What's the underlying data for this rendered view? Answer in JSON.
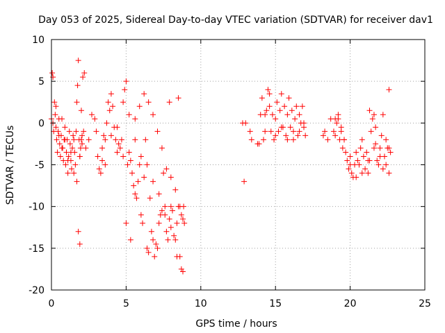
{
  "chart_data": {
    "type": "scatter",
    "title": "Day 053 of 2025, Sidereal Day-to-day VTEC variation (SDTVAR) for receiver dav1",
    "xlabel": "GPS time / hours",
    "ylabel": "SDTVAR / TECUs",
    "xlim": [
      0,
      25
    ],
    "ylim": [
      -20,
      10
    ],
    "xticks": [
      0,
      5,
      10,
      15,
      20,
      25
    ],
    "yticks": [
      10,
      5,
      0,
      -5,
      -10,
      -15,
      -20
    ],
    "xtick_labels": [
      "0",
      "5",
      "10",
      "15",
      "20",
      "25"
    ],
    "ytick_labels": [
      "10",
      "5",
      "0",
      "-5",
      "-10",
      "-15",
      "-20"
    ],
    "grid": true,
    "marker": "+",
    "marker_color": "#ff0000",
    "series": [
      {
        "name": "dav1",
        "x": [
          0.0,
          0.05,
          0.1,
          0.15,
          0.2,
          0.25,
          0.3,
          0.35,
          0.4,
          0.45,
          0.5,
          0.55,
          0.6,
          0.65,
          0.7,
          0.75,
          0.8,
          0.85,
          0.9,
          0.95,
          1.0,
          1.05,
          1.1,
          1.15,
          1.2,
          1.25,
          1.3,
          1.35,
          1.4,
          1.45,
          1.5,
          1.55,
          1.6,
          1.65,
          1.7,
          1.75,
          1.8,
          1.85,
          1.9,
          1.95,
          2.0,
          2.05,
          2.1,
          2.2,
          2.3,
          2.5,
          2.7,
          2.9,
          3.0,
          3.1,
          3.2,
          3.3,
          3.4,
          3.5,
          3.6,
          3.7,
          3.8,
          3.9,
          4.0,
          4.1,
          4.2,
          4.3,
          4.4,
          4.5,
          4.6,
          4.7,
          4.8,
          4.9,
          5.0,
          5.1,
          5.2,
          5.3,
          5.4,
          5.5,
          5.6,
          5.7,
          5.8,
          5.9,
          6.0,
          6.1,
          6.2,
          6.3,
          6.4,
          6.5,
          6.6,
          6.7,
          6.8,
          6.9,
          7.0,
          7.1,
          7.2,
          7.3,
          7.4,
          7.5,
          7.6,
          7.7,
          7.8,
          7.9,
          8.0,
          8.1,
          8.2,
          8.3,
          8.4,
          8.5,
          8.6,
          8.7,
          8.8,
          8.9,
          0.1,
          0.3,
          0.5,
          0.7,
          0.9,
          1.1,
          1.3,
          1.5,
          1.7,
          1.9,
          2.05,
          2.15,
          3.4,
          3.6,
          4.0,
          4.4,
          4.8,
          5.2,
          5.6,
          6.0,
          6.4,
          6.8,
          7.2,
          7.6,
          8.0,
          8.4,
          8.7,
          8.85,
          5.0,
          5.3,
          5.6,
          5.9,
          6.2,
          6.5,
          6.8,
          7.1,
          7.4,
          7.7,
          8.0,
          8.3,
          8.6,
          8.8,
          1.8,
          1.9,
          2.0,
          7.9,
          8.5,
          12.8,
          12.9,
          13.0,
          13.3,
          13.4,
          13.8,
          13.9,
          14.0,
          14.1,
          14.2,
          14.3,
          14.4,
          14.5,
          14.6,
          14.7,
          14.8,
          14.9,
          15.0,
          15.1,
          15.2,
          15.3,
          15.4,
          15.5,
          15.6,
          15.7,
          15.8,
          15.9,
          16.0,
          16.1,
          16.2,
          16.3,
          16.4,
          16.5,
          16.6,
          16.7,
          16.8,
          16.9,
          17.0,
          14.3,
          14.6,
          15.0,
          15.4,
          15.8,
          16.2,
          16.6,
          16.9,
          18.2,
          18.3,
          18.5,
          18.7,
          18.9,
          19.0,
          19.1,
          19.2,
          19.3,
          19.4,
          19.5,
          19.6,
          19.7,
          19.8,
          19.9,
          20.0,
          20.1,
          20.2,
          20.3,
          20.4,
          20.5,
          20.6,
          20.7,
          20.8,
          20.9,
          21.0,
          21.1,
          21.2,
          21.3,
          21.4,
          21.5,
          21.6,
          21.7,
          21.8,
          21.9,
          22.0,
          22.1,
          22.2,
          22.3,
          22.4,
          22.5,
          22.6,
          22.7,
          19.2,
          19.6,
          20.0,
          20.4,
          20.8,
          21.2,
          21.6,
          22.0,
          22.4,
          22.6,
          21.3,
          21.7,
          22.2,
          22.6,
          19.0,
          19.4
        ],
        "y": [
          0.5,
          6.0,
          5.5,
          -1.0,
          2.5,
          1.0,
          -0.5,
          -2.0,
          -3.5,
          -1.0,
          0.5,
          -2.5,
          -4.0,
          -1.5,
          0.5,
          -3.0,
          -4.5,
          -2.0,
          -0.5,
          -5.0,
          -3.5,
          -2.0,
          -6.0,
          -4.0,
          -1.0,
          -2.5,
          -4.5,
          -5.5,
          -3.0,
          -1.5,
          -2.0,
          -3.5,
          -5.0,
          -1.0,
          2.5,
          4.5,
          7.5,
          -2.0,
          -4.0,
          -3.0,
          -2.0,
          -1.5,
          5.5,
          6.0,
          -3.0,
          -2.0,
          1.0,
          0.5,
          -1.0,
          -4.0,
          -5.5,
          -6.0,
          -3.0,
          -1.5,
          -2.0,
          0.0,
          2.5,
          1.5,
          3.5,
          2.0,
          -0.5,
          -2.0,
          -3.5,
          -2.5,
          -3.0,
          -2.0,
          -4.0,
          4.0,
          5.0,
          -5.0,
          -3.5,
          -4.5,
          -6.0,
          -7.5,
          -8.5,
          -9.0,
          -7.0,
          -5.0,
          -11.0,
          -12.0,
          -6.5,
          -2.0,
          -15.0,
          -15.5,
          -9.0,
          -13.0,
          -14.0,
          -16.0,
          -14.5,
          -15.0,
          -12.0,
          -11.0,
          -10.5,
          -6.0,
          -11.0,
          -13.0,
          -14.0,
          -11.5,
          -10.0,
          -10.5,
          -13.5,
          -14.0,
          -12.0,
          -10.0,
          -16.0,
          -17.5,
          -17.8,
          -12.0,
          0.0,
          2.0,
          -1.5,
          -3.0,
          -2.0,
          -4.5,
          -3.5,
          -6.0,
          -7.0,
          -4.0,
          -2.5,
          -1.0,
          -4.5,
          -5.0,
          -1.5,
          -0.5,
          2.5,
          1.0,
          -2.0,
          -4.0,
          -5.0,
          -7.0,
          -8.5,
          -10.0,
          -12.5,
          -16.0,
          -11.0,
          -10.0,
          -12.0,
          -14.0,
          0.5,
          2.0,
          3.5,
          2.5,
          1.0,
          -1.0,
          -3.0,
          -5.5,
          -6.5,
          -8.0,
          -10.0,
          -11.5,
          -13.0,
          -14.5,
          1.5,
          2.5,
          3.0,
          0.0,
          -7.0,
          0.0,
          -1.0,
          -2.0,
          -2.5,
          -2.5,
          1.0,
          3.0,
          -2.0,
          -1.0,
          1.5,
          4.0,
          3.5,
          -1.0,
          1.0,
          -2.0,
          0.5,
          2.5,
          -1.0,
          1.5,
          3.5,
          -0.5,
          2.0,
          -1.5,
          1.0,
          3.0,
          -0.5,
          1.5,
          -1.0,
          0.5,
          2.0,
          -1.5,
          1.0,
          0.0,
          2.0,
          -0.5,
          -1.5,
          1.0,
          2.0,
          -1.5,
          -0.5,
          -2.0,
          -2.0,
          -1.0,
          0.0,
          -1.5,
          -1.0,
          -2.0,
          0.5,
          -1.0,
          -1.5,
          0.0,
          0.5,
          -2.0,
          -1.0,
          -3.0,
          -2.0,
          -3.5,
          -4.5,
          -5.5,
          -4.0,
          -6.0,
          -6.5,
          -5.0,
          -3.5,
          -4.5,
          -5.0,
          -3.0,
          -2.0,
          -4.0,
          -5.5,
          -3.5,
          -6.0,
          -4.5,
          -1.0,
          0.5,
          1.0,
          -2.5,
          -4.5,
          -5.0,
          -3.0,
          -1.5,
          -5.5,
          -4.0,
          -2.0,
          -3.0,
          -6.0,
          -3.5,
          1.0,
          -2.0,
          -5.0,
          -6.5,
          -6.0,
          -4.5,
          -3.0,
          -4.0,
          -5.0,
          -3.0,
          1.5,
          -0.5,
          1.0,
          4.0,
          0.5,
          -0.5
        ]
      }
    ]
  }
}
